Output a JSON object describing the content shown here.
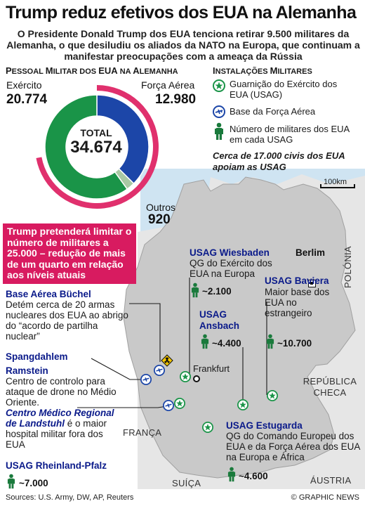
{
  "header": {
    "title": "Trump reduz efetivos dos EUA na Alemanha",
    "subtitle": "O Presidente Donald Trump dos EUA tenciona retirar 9.500 militares da Alemanha, o que desiludiu os aliados da NATO na Europa, que continuam a manifestar preocupações com a ameaça da Rússia"
  },
  "personnel": {
    "heading_first": "P",
    "heading_rest": "ESSOAL ",
    "heading_m": "M",
    "heading_rest2": "ILITAR DOS ",
    "heading_eua": "EUA",
    "heading_rest3": " NA ",
    "heading_a": "A",
    "heading_rest4": "LEMANHA",
    "army_label": "Exército",
    "army_value": "20.774",
    "airforce_label": "Força Aérea",
    "airforce_value": "12.980",
    "total_label": "TOTAL",
    "total_value": "34.674",
    "others_label": "Outros",
    "others_value": "920",
    "army_color": "#1a9448",
    "airforce_color": "#1c46a8",
    "others_color": "#a9c9a4",
    "ring_color": "#e0306d",
    "donut": [
      {
        "name": "Exército",
        "value": 20774
      },
      {
        "name": "Força Aérea",
        "value": 12980
      },
      {
        "name": "Outros",
        "value": 920
      }
    ],
    "callout": "Trump pretenderá limitar o número de militares a 25.000 – redução de mais de um quarto em relação aos níveis atuais"
  },
  "installations": {
    "heading_first": "I",
    "heading_rest": "NSTALAÇÕES ",
    "heading_m": "M",
    "heading_rest2": "ILITARES",
    "legend": [
      {
        "icon": "garrison-star-icon",
        "label": "Guarnição do Exército dos EUA (USAG)"
      },
      {
        "icon": "air-base-plane-icon",
        "label": "Base da Força Aérea"
      },
      {
        "icon": "soldier-icon",
        "label": "Número de militares dos EUA em cada USAG"
      }
    ],
    "note": "Cerca de 17.000 civis dos EUA apoiam as USAG"
  },
  "map": {
    "scale": "100km",
    "cities": {
      "berlin": "Berlim",
      "frankfurt": "Frankfurt"
    },
    "countries": {
      "poland": "POLÓNIA",
      "czech": "REPÚBLICA CHECA",
      "france": "FRANÇA",
      "switzerland": "SUÍÇA",
      "austria": "ÁUSTRIA"
    },
    "sites": {
      "buchel": {
        "title": "Base Aérea Büchel",
        "text": "Detém cerca de 20 armas nucleares dos EUA ao abrigo do “acordo de partilha nuclear”"
      },
      "spangdahlem": {
        "title": "Spangdahlem"
      },
      "ramstein": {
        "title": "Ramstein",
        "text": "Centro de controlo para ataque de drone no Médio Oriente.",
        "italic": "Centro Médico Regional de Landstuhl",
        "text2": "é o maior hospital militar fora dos EUA"
      },
      "rheinland": {
        "title": "USAG Rheinland-Pfalz",
        "count": "~7.000"
      },
      "wiesbaden": {
        "title": "USAG Wiesbaden",
        "text": "QG do Exército dos EUA na Europa",
        "count": "~2.100"
      },
      "ansbach": {
        "title": "USAG Ansbach",
        "count": "~4.400"
      },
      "bavaria": {
        "title": "USAG Baviera",
        "text": "Maior base dos EUA no estrangeiro",
        "count": "~10.700"
      },
      "stuttgart": {
        "title": "USAG Estugarda",
        "text": "QG do Comando Europeu dos EUA e da Força Aérea dos EUA na Europa e África",
        "count": "~4.600"
      }
    }
  },
  "footer": {
    "sources": "Sources: U.S. Army, DW, AP, Reuters",
    "credit": "© GRAPHIC NEWS"
  }
}
